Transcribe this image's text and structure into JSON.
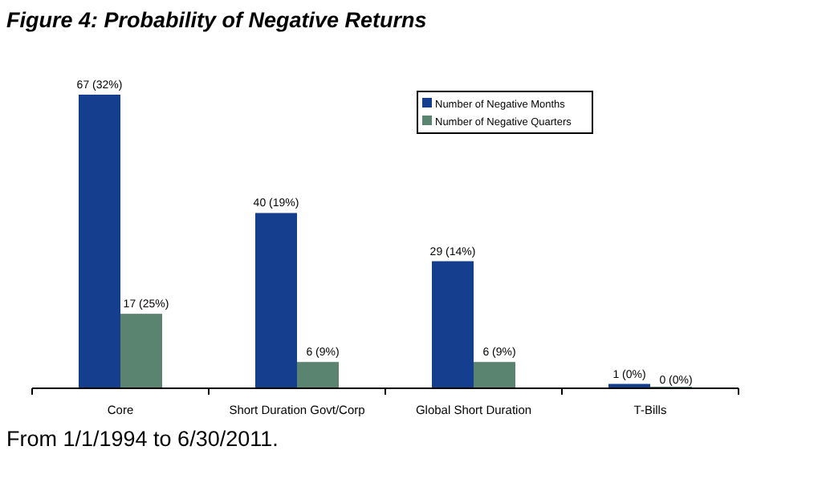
{
  "chart_data": {
    "type": "bar",
    "title": "Figure 4: Probability of Negative Returns",
    "categories": [
      "Core",
      "Short Duration Govt/Corp",
      "Global Short Duration",
      "T-Bills"
    ],
    "series": [
      {
        "name": "Number of Negative Months",
        "color": "#153e8e",
        "values": [
          67,
          40,
          29,
          1
        ],
        "value_labels": [
          "67 (32%)",
          "40 (19%)",
          "29 (14%)",
          "1 (0%)"
        ]
      },
      {
        "name": "Number of Negative Quarters",
        "color": "#5a8370",
        "values": [
          17,
          6,
          6,
          0
        ],
        "value_labels": [
          "17 (25%)",
          "6 (9%)",
          "6 (9%)",
          "0 (0%)"
        ]
      }
    ],
    "legend": "top right",
    "annotations": [
      "From 1/1/1994 to 6/30/2011."
    ]
  }
}
